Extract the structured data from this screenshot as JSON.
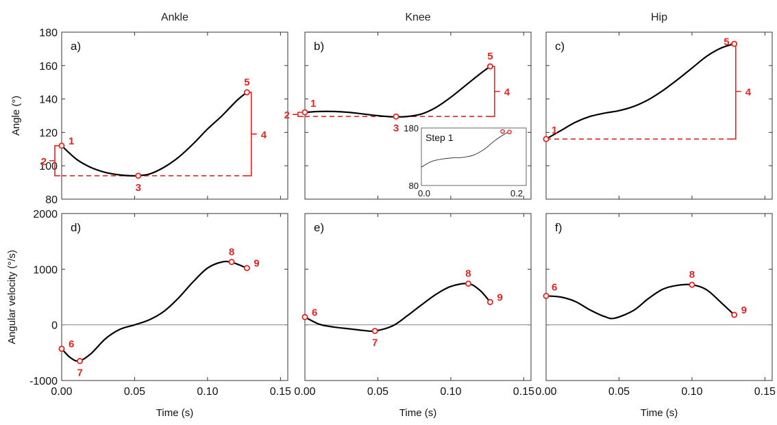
{
  "columns": [
    "Ankle",
    "Knee",
    "Hip"
  ],
  "colors": {
    "curve": "#000000",
    "marker": "#e8231f",
    "axis": "#333333",
    "zero_line": "#888888"
  },
  "axis_text": {
    "top_ylabel": "Angle (°)",
    "bottom_ylabel": "Angular velocity (°/s)",
    "xlabel": "Time (s)"
  },
  "ticks": {
    "x": [
      "0.00",
      "0.05",
      "0.10",
      "0.15"
    ],
    "top_y": [
      "80",
      "100",
      "120",
      "140",
      "160",
      "180"
    ],
    "bottom_y": [
      "-1000",
      "0",
      "1000",
      "2000"
    ]
  },
  "chart_data": [
    {
      "panel": "a)",
      "type": "line",
      "row": "angle",
      "column": "Ankle",
      "xlim": [
        0,
        0.155
      ],
      "ylim": [
        80,
        180
      ],
      "x": [
        0.0,
        0.01,
        0.02,
        0.03,
        0.04,
        0.05,
        0.06,
        0.07,
        0.08,
        0.09,
        0.1,
        0.11,
        0.12,
        0.127
      ],
      "y": [
        112,
        104,
        99,
        96,
        94.5,
        94,
        95,
        99,
        105,
        113,
        122,
        130,
        139,
        144
      ],
      "points": [
        {
          "label": "1",
          "x": 0.0,
          "y": 112,
          "pos": "right"
        },
        {
          "label": "3",
          "x": 0.0525,
          "y": 94,
          "pos": "below"
        },
        {
          "label": "5",
          "x": 0.127,
          "y": 144,
          "pos": "above"
        }
      ],
      "baseline": {
        "y": 94,
        "x_from": 0.0,
        "x_to": 0.13
      },
      "bracket_range": {
        "label": "4",
        "y1": 94,
        "y2": 144
      },
      "left_bracket": {
        "label": "2",
        "y1": 94,
        "y2": 112
      }
    },
    {
      "panel": "b)",
      "type": "line",
      "row": "angle",
      "column": "Knee",
      "xlim": [
        0,
        0.155
      ],
      "ylim": [
        80,
        180
      ],
      "x": [
        0.0,
        0.01,
        0.02,
        0.03,
        0.04,
        0.05,
        0.06,
        0.07,
        0.08,
        0.09,
        0.1,
        0.11,
        0.12,
        0.127
      ],
      "y": [
        132,
        132.5,
        132.5,
        132,
        131,
        130,
        129.3,
        129.5,
        131,
        135,
        141,
        148,
        155,
        159.5
      ],
      "points": [
        {
          "label": "1",
          "x": 0.0,
          "y": 132,
          "pos": "above-right"
        },
        {
          "label": "3",
          "x": 0.0625,
          "y": 129.5,
          "pos": "below"
        },
        {
          "label": "5",
          "x": 0.127,
          "y": 159.5,
          "pos": "above"
        }
      ],
      "baseline": {
        "y": 129.5,
        "x_from": 0.0,
        "x_to": 0.13
      },
      "bracket_range": {
        "label": "4",
        "y1": 129.5,
        "y2": 159.5
      },
      "left_bracket": {
        "label": "2",
        "y1": 129.5,
        "y2": 132
      },
      "inset": {
        "title": "Step 1",
        "ylim": [
          80,
          180
        ],
        "y_ticks": [
          "180",
          "80"
        ],
        "xlim": [
          0,
          0.2
        ],
        "x_ticks": [
          "0.0",
          "0.2"
        ],
        "x": [
          0.0,
          0.02,
          0.04,
          0.06,
          0.08,
          0.1,
          0.12,
          0.14,
          0.16,
          0.17
        ],
        "y": [
          112,
          122,
          126,
          128,
          129,
          133,
          143,
          158,
          170,
          174
        ],
        "points": [
          {
            "x": 0.155,
            "y": 174
          },
          {
            "x": 0.168,
            "y": 173
          }
        ]
      }
    },
    {
      "panel": "c)",
      "type": "line",
      "row": "angle",
      "column": "Hip",
      "xlim": [
        0,
        0.155
      ],
      "ylim": [
        80,
        180
      ],
      "x": [
        0.0,
        0.01,
        0.02,
        0.03,
        0.04,
        0.05,
        0.06,
        0.07,
        0.08,
        0.09,
        0.1,
        0.11,
        0.12,
        0.129
      ],
      "y": [
        116,
        121,
        126,
        129.5,
        131.5,
        133,
        135.5,
        139.5,
        145,
        151.5,
        158.5,
        165.5,
        170.5,
        173
      ],
      "points": [
        {
          "label": "1",
          "x": 0.0,
          "y": 116,
          "pos": "above-right"
        },
        {
          "label": "5",
          "x": 0.129,
          "y": 173,
          "pos": "left"
        }
      ],
      "baseline": {
        "y": 116,
        "x_from": 0.0,
        "x_to": 0.13
      },
      "bracket_range": {
        "label": "4",
        "y1": 116,
        "y2": 173
      }
    },
    {
      "panel": "d)",
      "type": "line",
      "row": "velocity",
      "column": "Ankle",
      "xlim": [
        0,
        0.155
      ],
      "ylim": [
        -1000,
        2000
      ],
      "x": [
        0.0,
        0.006,
        0.012,
        0.02,
        0.03,
        0.04,
        0.05,
        0.06,
        0.07,
        0.08,
        0.09,
        0.1,
        0.11,
        0.117,
        0.127
      ],
      "y": [
        -430,
        -590,
        -650,
        -520,
        -250,
        -80,
        0,
        90,
        240,
        480,
        770,
        1020,
        1130,
        1120,
        1020
      ],
      "points": [
        {
          "label": "6",
          "x": 0.0,
          "y": -430,
          "pos": "right"
        },
        {
          "label": "7",
          "x": 0.0125,
          "y": -650,
          "pos": "below"
        },
        {
          "label": "8",
          "x": 0.1165,
          "y": 1130,
          "pos": "above"
        },
        {
          "label": "9",
          "x": 0.127,
          "y": 1020,
          "pos": "right"
        }
      ]
    },
    {
      "panel": "e)",
      "type": "line",
      "row": "velocity",
      "column": "Knee",
      "xlim": [
        0,
        0.155
      ],
      "ylim": [
        -1000,
        2000
      ],
      "x": [
        0.0,
        0.01,
        0.02,
        0.03,
        0.04,
        0.048,
        0.06,
        0.07,
        0.08,
        0.09,
        0.1,
        0.112,
        0.12,
        0.127
      ],
      "y": [
        140,
        10,
        -40,
        -70,
        -100,
        -110,
        -20,
        160,
        360,
        550,
        690,
        740,
        620,
        410
      ],
      "points": [
        {
          "label": "6",
          "x": 0.0,
          "y": 140,
          "pos": "right"
        },
        {
          "label": "7",
          "x": 0.048,
          "y": -110,
          "pos": "below"
        },
        {
          "label": "8",
          "x": 0.112,
          "y": 740,
          "pos": "above"
        },
        {
          "label": "9",
          "x": 0.127,
          "y": 410,
          "pos": "right"
        }
      ]
    },
    {
      "panel": "f)",
      "type": "line",
      "row": "velocity",
      "column": "Hip",
      "xlim": [
        0,
        0.155
      ],
      "ylim": [
        -1000,
        2000
      ],
      "x": [
        0.0,
        0.01,
        0.02,
        0.03,
        0.04,
        0.047,
        0.06,
        0.07,
        0.08,
        0.09,
        0.1,
        0.11,
        0.12,
        0.129
      ],
      "y": [
        520,
        500,
        420,
        270,
        150,
        120,
        260,
        470,
        640,
        710,
        720,
        630,
        400,
        180
      ],
      "points": [
        {
          "label": "6",
          "x": 0.0,
          "y": 520,
          "pos": "above-right"
        },
        {
          "label": "8",
          "x": 0.1,
          "y": 720,
          "pos": "above"
        },
        {
          "label": "9",
          "x": 0.129,
          "y": 180,
          "pos": "right"
        }
      ]
    }
  ]
}
